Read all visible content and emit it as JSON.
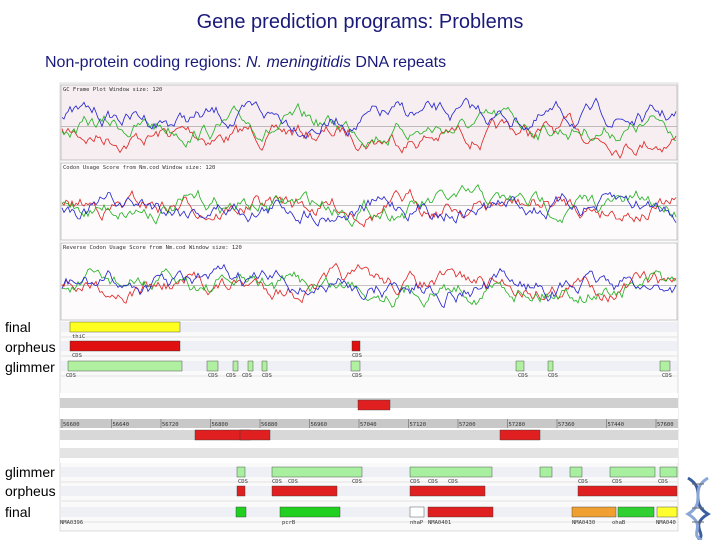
{
  "title": "Gene prediction programs: Problems",
  "subtitle": {
    "lead": "Non-protein coding regions: ",
    "species": "N. meningitidis",
    "rest": " DNA repeats"
  },
  "plots": [
    {
      "title": "GC Frame Plot  Window size: 120"
    },
    {
      "title": "Codon Usage Score from Nm.cod  Window size: 120"
    },
    {
      "title": "Reverse Codon Usage Score from Nm.cod  Window size: 120"
    }
  ],
  "track_labels_top": [
    "final",
    "orpheus",
    "glimmer"
  ],
  "track_labels_bottom": [
    "glimmer",
    "orpheus",
    "final"
  ],
  "top_feature_labels": [
    "thiC",
    "CDS",
    "CDS",
    "CDS",
    "CDS",
    "CDS",
    "CDS",
    "CDS",
    "CDS",
    "CDS",
    "CDS",
    "CDS"
  ],
  "coordinates": [
    "56600",
    "56640",
    "56720",
    "56800",
    "56880",
    "56960",
    "57040",
    "57120",
    "57200",
    "57280",
    "57360",
    "57440",
    "57600"
  ],
  "lower_feature_labels": [
    "CDS",
    "CDS",
    "CDS",
    "CDS",
    "CDS",
    "CDS",
    "CDS",
    "CDS",
    "CDS",
    "CDS"
  ],
  "gene_labels": [
    "NMA0396",
    "pcrB",
    "nhaP",
    "NMA0401",
    "NMA0430",
    "ohaB",
    "NMA040"
  ]
}
